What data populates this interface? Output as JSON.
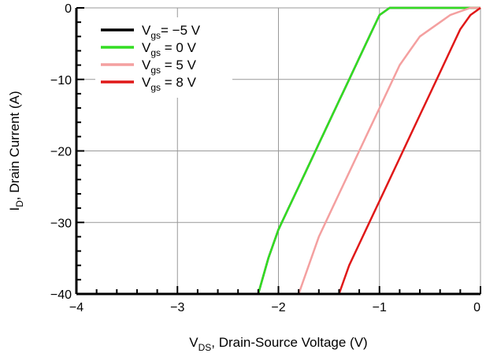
{
  "chart_data": {
    "type": "line",
    "title": "",
    "xlabel": {
      "main": "V",
      "sub": "DS",
      "rest": ", Drain-Source Voltage (V)"
    },
    "ylabel": {
      "main": "I",
      "sub": "D",
      "rest": ", Drain Current (A)"
    },
    "xlim": [
      -4,
      0
    ],
    "ylim": [
      -40,
      0
    ],
    "x_ticks": [
      -4,
      -3,
      -2,
      -1,
      0
    ],
    "x_tick_labels": [
      "−4",
      "−3",
      "−2",
      "−1",
      "0"
    ],
    "y_ticks": [
      0,
      -10,
      -20,
      -30,
      -40
    ],
    "y_tick_labels": [
      "0",
      "−10",
      "−20",
      "−30",
      "−40"
    ],
    "grid": true,
    "legend_position": "top-left",
    "series": [
      {
        "name": {
          "main": "V",
          "sub": "gs",
          "rest": "= −5 V"
        },
        "color": "#000000",
        "x": [
          -2.2,
          -2.1,
          -2.0,
          -1.9,
          -1.8,
          -1.7,
          -1.6,
          -1.5,
          -1.4,
          -1.3,
          -1.2,
          -1.1,
          -1.0,
          -0.9,
          -0.5,
          0.0
        ],
        "y": [
          -40,
          -35,
          -31,
          -28,
          -25,
          -22,
          -19,
          -16,
          -13,
          -10,
          -7,
          -4,
          -1,
          0,
          0,
          0
        ]
      },
      {
        "name": {
          "main": "V",
          "sub": "gs",
          "rest": " = 0 V"
        },
        "color": "#33dd22",
        "x": [
          -2.2,
          -2.1,
          -2.0,
          -1.9,
          -1.8,
          -1.7,
          -1.6,
          -1.5,
          -1.4,
          -1.3,
          -1.2,
          -1.1,
          -1.0,
          -0.9,
          -0.5,
          0.0
        ],
        "y": [
          -40,
          -35,
          -31,
          -28,
          -25,
          -22,
          -19,
          -16,
          -13,
          -10,
          -7,
          -4,
          -1,
          0,
          0,
          0
        ]
      },
      {
        "name": {
          "main": "V",
          "sub": "gs",
          "rest": " = 5 V"
        },
        "color": "#f4a0a0",
        "x": [
          -1.8,
          -1.7,
          -1.6,
          -1.5,
          -1.4,
          -1.3,
          -1.2,
          -1.1,
          -1.0,
          -0.9,
          -0.8,
          -0.7,
          -0.6,
          -0.5,
          -0.4,
          -0.3,
          -0.2,
          -0.1,
          0.0
        ],
        "y": [
          -40,
          -36,
          -32,
          -29,
          -26,
          -23,
          -20,
          -17,
          -14,
          -11,
          -8,
          -6,
          -4,
          -3,
          -2,
          -1,
          -0.5,
          0,
          0
        ]
      },
      {
        "name": {
          "main": "V",
          "sub": "gs",
          "rest": " = 8 V"
        },
        "color": "#e01818",
        "x": [
          -1.4,
          -1.3,
          -1.2,
          -1.1,
          -1.0,
          -0.9,
          -0.8,
          -0.7,
          -0.6,
          -0.5,
          -0.4,
          -0.3,
          -0.2,
          -0.1,
          0.0
        ],
        "y": [
          -40,
          -36,
          -33,
          -30,
          -27,
          -24,
          -21,
          -18,
          -15,
          -12,
          -9,
          -6,
          -3,
          -1,
          0
        ]
      }
    ]
  }
}
